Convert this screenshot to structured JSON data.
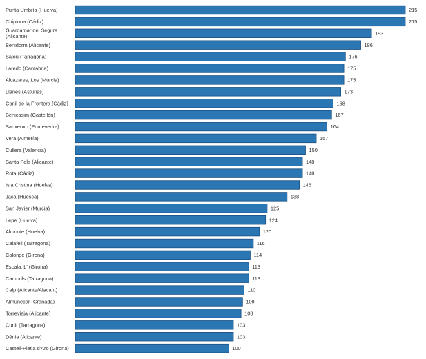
{
  "chart_data": {
    "type": "bar",
    "orientation": "horizontal",
    "title": "",
    "xlabel": "",
    "ylabel": "",
    "xlim": [
      0,
      215
    ],
    "grid": false,
    "legend": "none",
    "bar_color": "#2a77b4",
    "bar_edge_color": "#1c4f80",
    "categories": [
      "Punta Umbría (Huelva)",
      "Chipiona (Cádiz)",
      "Guardamar del Segura (Alicante)",
      "Benidorm (Alicante)",
      "Salou (Tarragona)",
      "Laredo (Cantabria)",
      "Alcázares, Los (Murcia)",
      "Llanes (Asturias)",
      "Conil de la Frontera (Cádiz)",
      "Benicasim (Castellón)",
      "Sanxenxo (Pontevedra)",
      "Vera (Almería)",
      "Cullera (Valencia)",
      "Santa Pola (Alicante)",
      "Rota (Cádiz)",
      "Isla Cristina (Huelva)",
      "Jaca (Huesca)",
      "San Javier (Murcia)",
      "Lepe (Huelva)",
      "Almonte (Huelva)",
      "Calafell (Tarragona)",
      "Calonge (Girona)",
      "Escala, L' (Girona)",
      "Cambrils (Tarragona)",
      "Calp (Alicante/Alacant)",
      "Almuñecar (Granada)",
      "Torrevieja (Alicante)",
      "Cunit (Tarragona)",
      "Dénia (Alicante)",
      "Castell-Platja d'Aro (Girona)"
    ],
    "values": [
      215,
      215,
      193,
      186,
      176,
      175,
      175,
      173,
      168,
      167,
      164,
      157,
      150,
      148,
      148,
      146,
      138,
      125,
      124,
      120,
      116,
      114,
      113,
      113,
      110,
      109,
      108,
      103,
      103,
      100
    ]
  }
}
